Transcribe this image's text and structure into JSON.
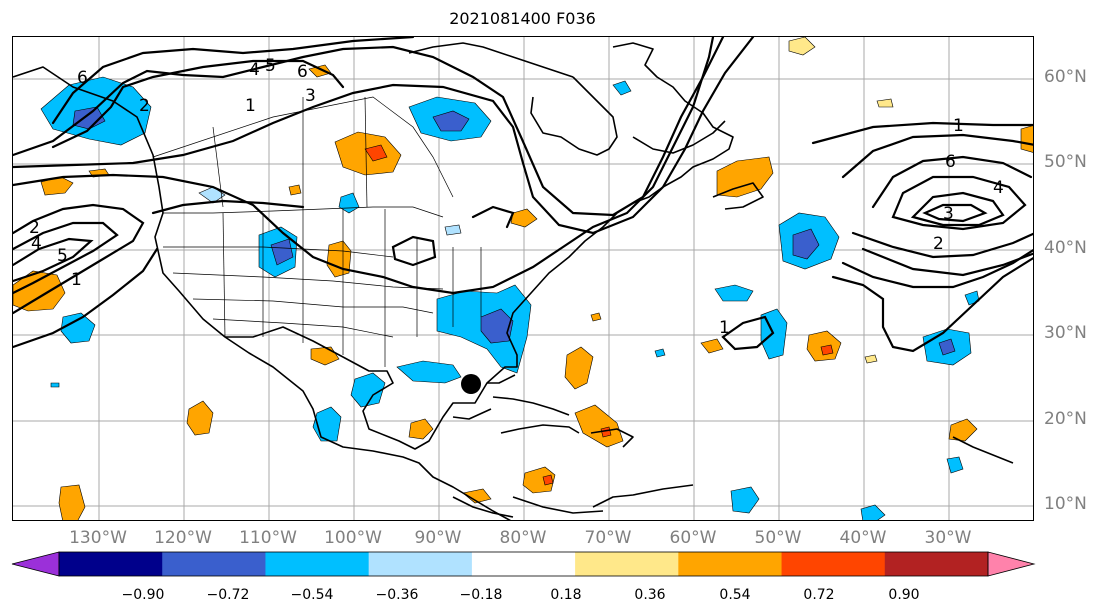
{
  "title": "2021081400 F036",
  "lat_labels": [
    "60°N",
    "50°N",
    "40°N",
    "30°N",
    "20°N",
    "10°N"
  ],
  "lon_labels": [
    "130°W",
    "120°W",
    "110°W",
    "100°W",
    "90°W",
    "80°W",
    "70°W",
    "60°W",
    "50°W",
    "40°W",
    "30°W"
  ],
  "colorbar": {
    "tick_labels": [
      "−0.90",
      "−0.72",
      "−0.54",
      "−0.36",
      "−0.18",
      "0.18",
      "0.36",
      "0.54",
      "0.72",
      "0.90"
    ],
    "colors": [
      "#9b30d9",
      "#00008b",
      "#3a5fcd",
      "#00bfff",
      "#b0e2ff",
      "#ffffff",
      "#ffe88a",
      "#ffa500",
      "#ff4500",
      "#b22222",
      "#ff82ab"
    ]
  },
  "contour_labels": [
    "6",
    "4",
    "5",
    "6",
    "3",
    "2",
    "1",
    "1",
    "6",
    "4",
    "3",
    "2",
    "2",
    "4",
    "5",
    "1",
    "1"
  ],
  "storm_marker": "black-dot"
}
